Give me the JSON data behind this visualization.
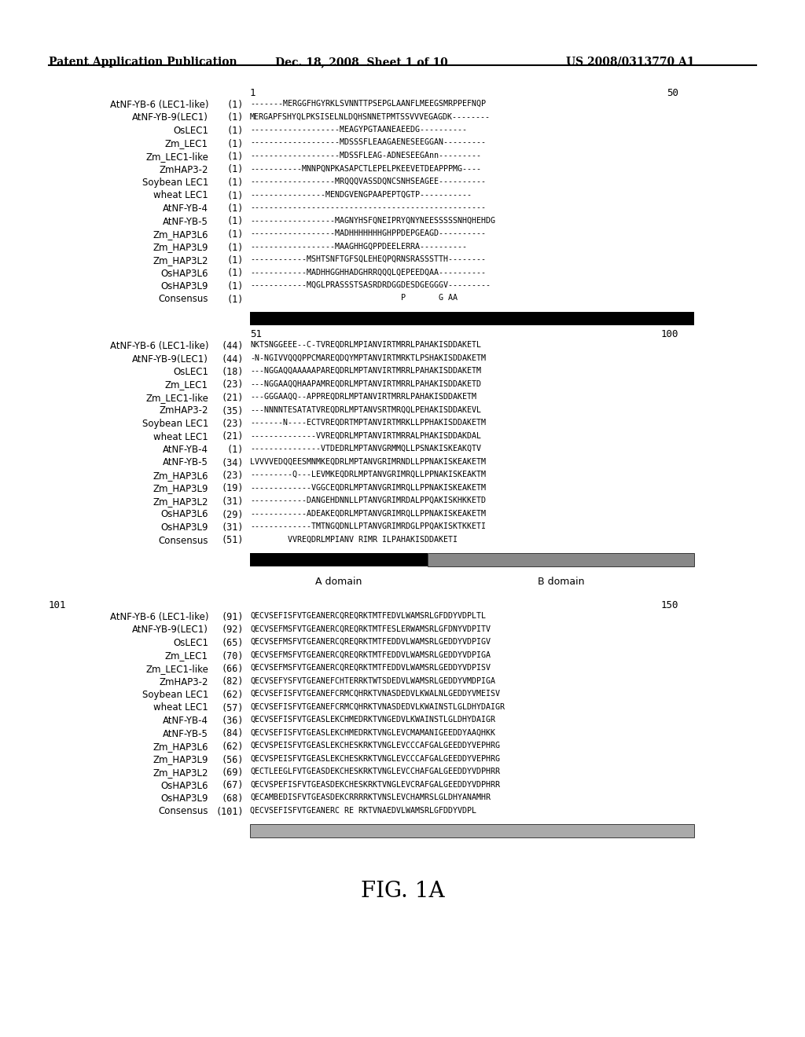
{
  "header_left": "Patent Application Publication",
  "header_mid": "Dec. 18, 2008  Sheet 1 of 10",
  "header_right": "US 2008/0313770 A1",
  "figure_label": "FIG. 1A",
  "background": "#ffffff",
  "block1_num1": "1",
  "block1_num2": "50",
  "block1_rows": [
    [
      "AtNF-YB-6 (LEC1-like)",
      "(1)",
      "-------MERGGFHGYRKLSVNNTTPSEPGLAANFLMEEGSMRPPEFNQP"
    ],
    [
      "AtNF-YB-9(LEC1)",
      "(1)",
      "MERGAPFSHYQLPKSISELNLDQHSNNЕТPMTSSVVVEGAGDK--------"
    ],
    [
      "OsLEC1",
      "(1)",
      "-------------------MEAGYPGTAANЕАЕEDG----------"
    ],
    [
      "Zm_LEC1",
      "(1)",
      "-------------------MDSSSFLEAAGAENЕSEEGGAN---------"
    ],
    [
      "Zm_LEC1-like",
      "(1)",
      "-------------------MDSSFLЕAG-ADNЕSEEGAnn---------"
    ],
    [
      "ZmHAP3-2",
      "(1)",
      "-----------MNNPQNPKASAPCTLЕPELPKEЕVЕTDEAPPPMG----"
    ],
    [
      "Soybean LEC1",
      "(1)",
      "------------------MRQQQVASSDQNCSNHSЕАGЕЕ----------"
    ],
    [
      "wheat LEC1",
      "(1)",
      "----------------MENDGVЕNGPAAPЕPTQGTP-----------"
    ],
    [
      "AtNF-YB-4",
      "(1)",
      "--------------------------------------------------"
    ],
    [
      "AtNF-YB-5",
      "(1)",
      "------------------MAGNYHSFQNEIPRYQNYNEЕSSSSSNHQHEHDG"
    ],
    [
      "Zm_HAP3L6",
      "(1)",
      "------------------MADHHHHHHHGHPPDЕРGЕAGD----------"
    ],
    [
      "Zm_HAP3L9",
      "(1)",
      "------------------MAAGHHGQPPDEЕLЕRRA----------"
    ],
    [
      "Zm_HAP3L2",
      "(1)",
      "------------MSHTSNFTGFSQLEHЕQPQRNSRASSSTTH--------"
    ],
    [
      "OsHAP3L6",
      "(1)",
      "------------MADHHGGHHADGHRRQQQLQЕPЕEDQAA----------"
    ],
    [
      "OsHAP3L9",
      "(1)",
      "------------MQGLPRASSSTSASRDRDGGDЕSDGЕGGGV---------"
    ],
    [
      "Consensus",
      "(1)",
      "                                P       G AA"
    ]
  ],
  "block2_num1": "51",
  "block2_num2": "100",
  "block2_label_A": "A domain",
  "block2_label_B": "B domain",
  "block2_rows": [
    [
      "AtNF-YB-6 (LEC1-like)",
      "(44)",
      "NKTSNGGEEE--C-TVREQDRLMPIANVIRTMRRLPAHAKISDDAKETL"
    ],
    [
      "AtNF-YB-9(LEC1)",
      "(44)",
      "-N-NGIVVQQQPPCMAREQDQYMPTANVIRTMRKTLPSHAKISDDAKETM"
    ],
    [
      "OsLEC1",
      "(18)",
      "---NGGAQQAAAAAPAREQDRLMPTANVIRTMRRLPAHAKISDDAKETM"
    ],
    [
      "Zm_LEC1",
      "(23)",
      "---NGGAAQQHAAPAMREQDRLMPTANVIRTMRRLPAHAKISDDAKETD"
    ],
    [
      "Zm_LEC1-like",
      "(21)",
      "---GGGAAQQ--APPREQDRLMPTANVIRTMRRLPAHAKISDDAKETM"
    ],
    [
      "ZmHAP3-2",
      "(35)",
      "---NNNNTESАТАТVREQDRLMPTANVSRTMRQQLPEHAKISDDAKEVL"
    ],
    [
      "Soybean LEC1",
      "(23)",
      "-------N----ECTVREQDRTMPTANVIRTMRKLLPPHAKISDDAKETM"
    ],
    [
      "wheat LEC1",
      "(21)",
      "--------------VVREQDRLMPTANVIRTMRRALPHAKISDDAKDAL"
    ],
    [
      "AtNF-YB-4",
      "(1)",
      "---------------VTDEDRLMPTANVGRMMQLLPSNAKISKEAKQTV"
    ],
    [
      "AtNF-YB-5",
      "(34)",
      "LVVVVEDQQEESMNMKEQDRLMPTANVGRIMRNDLLPPNAKISKEAKETM"
    ],
    [
      "Zm_HAP3L6",
      "(23)",
      "---------Q---LEVMKEQDRLMPTANVGRIMRQLLPPNAKISKEAKTM"
    ],
    [
      "Zm_HAP3L9",
      "(19)",
      "-------------VGGCEQDRLMPTANVGRIMRQLLPPNAKISKEAKETM"
    ],
    [
      "Zm_HAP3L2",
      "(31)",
      "------------DANGEHDNNLLPTANVGRIMRDALPPQAKISKHKKETD"
    ],
    [
      "OsHAP3L6",
      "(29)",
      "------------ADEAKEQDRLMPTANVGRIMRQLLPPNAKISKEAKETM"
    ],
    [
      "OsHAP3L9",
      "(31)",
      "-------------TMTNGQDNLLPTANVGRIMRDGLPPQAKISKTKKETI"
    ],
    [
      "Consensus",
      "(51)",
      "        VVREQDRLMPIANV RIMR ILPAHAKISDDAKETI"
    ]
  ],
  "block3_num1": "101",
  "block3_num2": "150",
  "block3_rows": [
    [
      "AtNF-YB-6 (LEC1-like)",
      "(91)",
      "QECVSEFISFVTGEANERCQREQRKTMTFEDVLWAMSRLGFDDYVDPLTL"
    ],
    [
      "AtNF-YB-9(LEC1)",
      "(92)",
      "QECVSEFMSFVTGEANERCQREQRKTMTFESLERWAMSRLGFDNYVDPITV"
    ],
    [
      "OsLEC1",
      "(65)",
      "QECVSEFMSFVTGEANERCQREQRKTMTFEDDVLWAMSRLGEDDYVDPIGV"
    ],
    [
      "Zm_LEC1",
      "(70)",
      "QECVSEFMSFVTGEANERCQREQRKTMTFEDDVLWAMSRLGEDDYVDPIGA"
    ],
    [
      "Zm_LEC1-like",
      "(66)",
      "QECVSEFMSFVTGEANERCQREQRKTMTFEDDVLWAMSRLGEDDYVDPISV"
    ],
    [
      "ZmHAP3-2",
      "(82)",
      "QECVSEFYSFVTGEANEFCHTERRKTWTSDEDVLWAMSRLGEDDYVMDPIGA"
    ],
    [
      "Soybean LEC1",
      "(62)",
      "QECVSEFISFVTGEANEFCRMCQHRKTVNASDEDVLKWALNLGEDDYVMEISV"
    ],
    [
      "wheat LEC1",
      "(57)",
      "QECVSEFISFVTGEANEFCRMCQHRKTVNASDEDVLKWAINSTLGLDHYDAIGR"
    ],
    [
      "AtNF-YB-4",
      "(36)",
      "QECVSEFISFVTGEASLEKCHMEDRKTVNGEDVLKWAINSTLGLDHYDAIGR"
    ],
    [
      "AtNF-YB-5",
      "(84)",
      "QECVSEFISFVTGEASLEKCHMEDRKTVNGLEVCMAMANIGEEDDYAAQHKK"
    ],
    [
      "Zm_HAP3L6",
      "(62)",
      "QECVSPEISFVTGEASLEKCHESKRKTVNGLEVCCCAFGALGEEDDYVEPHRG"
    ],
    [
      "Zm_HAP3L9",
      "(56)",
      "QECVSPEISFVTGEASLEKCHESKRKTVNGLEVCCCAFGALGEEDDYVEPHRG"
    ],
    [
      "Zm_HAP3L2",
      "(69)",
      "QECTLEEGLFVTGEASDEKCHESKRKTVNGLEVCCHAFGALGEEDDYVDPHRR"
    ],
    [
      "OsHAP3L6",
      "(67)",
      "QECVSPEFISFVTGEASDEKCHESKRKTVNGLEVCRAFGALGEEDDYVDPHRR"
    ],
    [
      "OsHAP3L9",
      "(68)",
      "QECAMBEDISFVTGEASDEKCRRRRKTVNSLEVCHAMRSLGLDHYANAMHR"
    ],
    [
      "Consensus",
      "(101)",
      "QECVSEFISFVTGEANERC RE RKTVNAEDVLWAMSRLGFDDYVDPL"
    ]
  ]
}
